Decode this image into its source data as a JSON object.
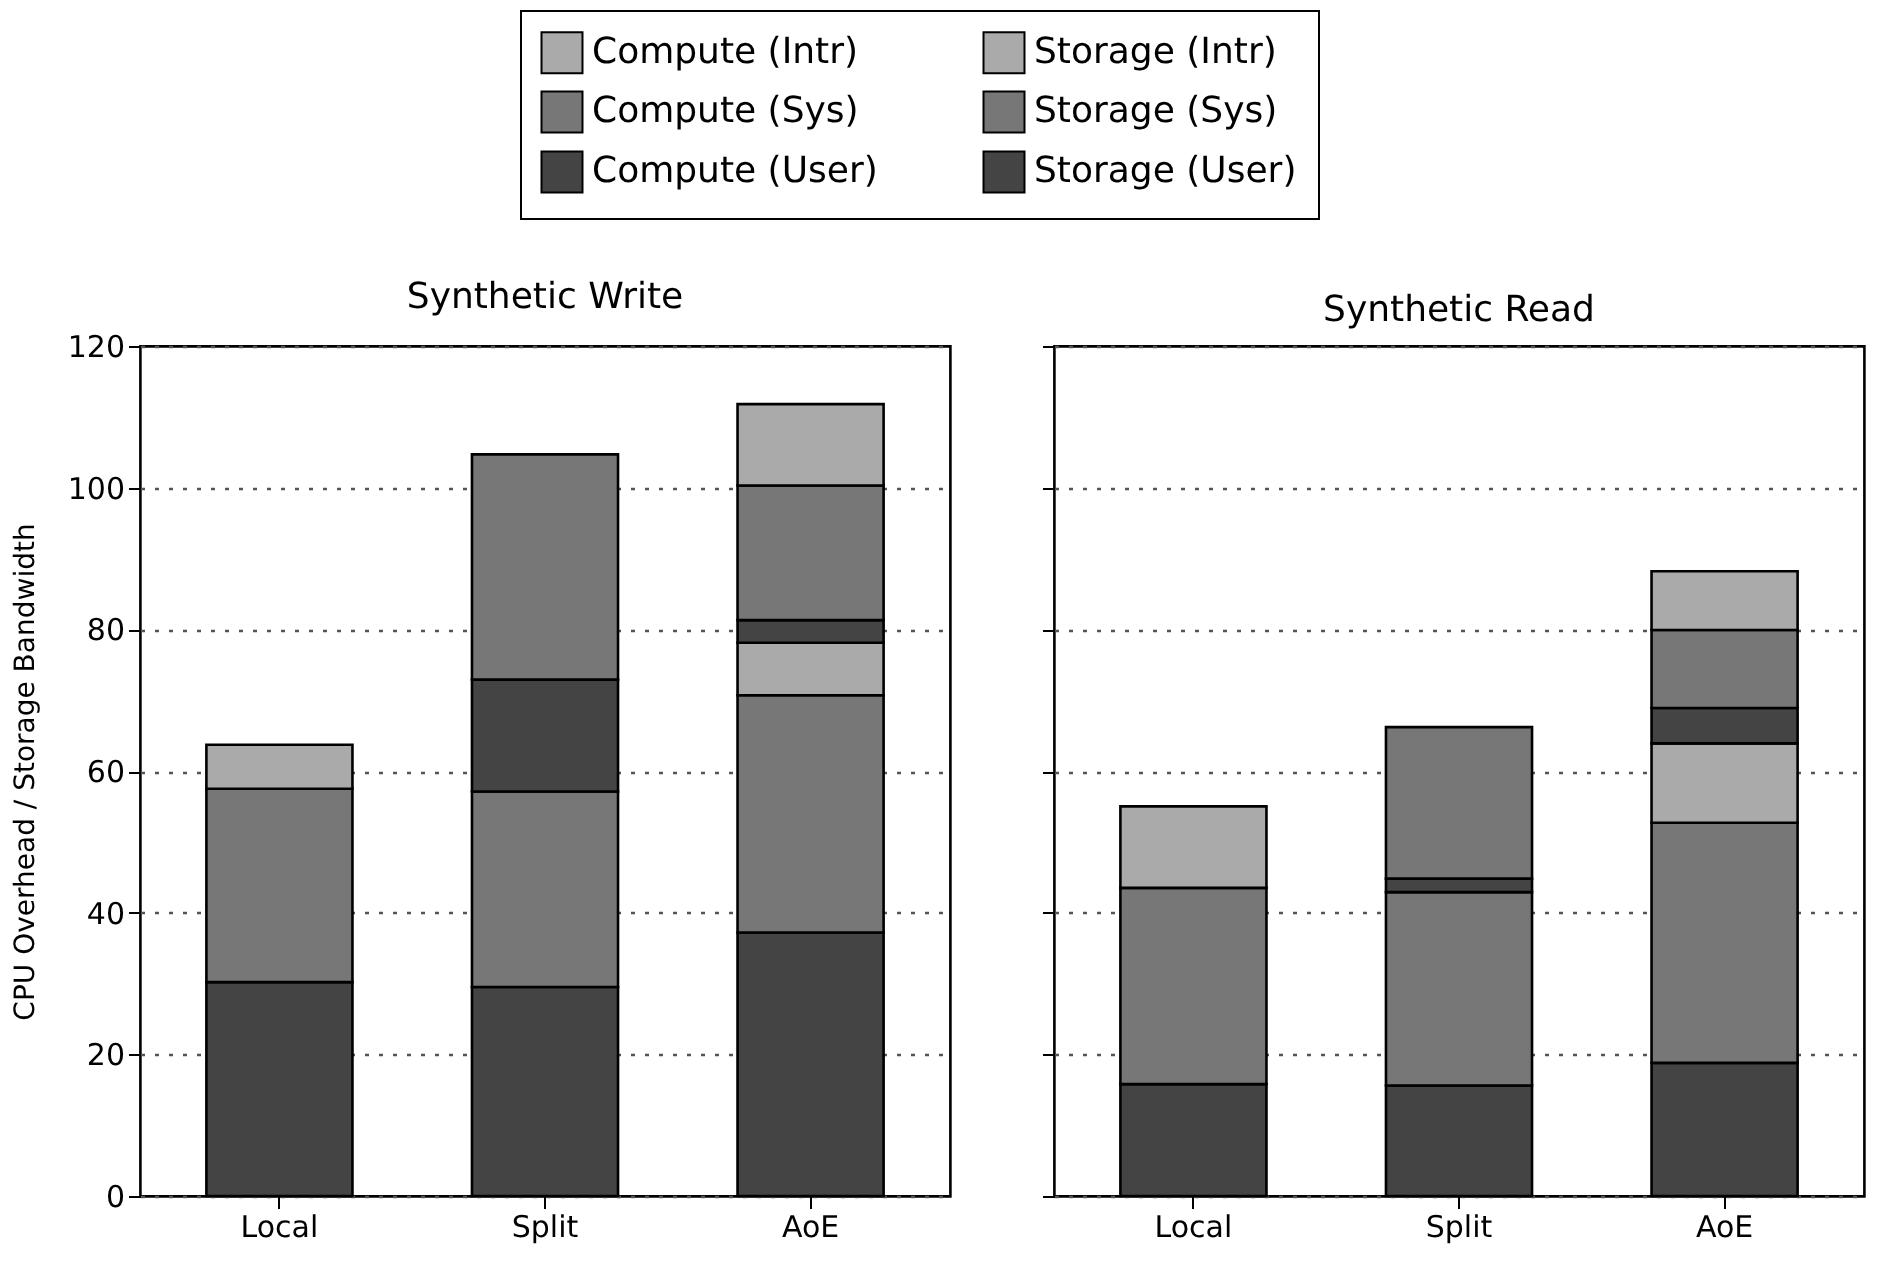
{
  "chart_data": [
    {
      "type": "bar",
      "title": "Synthetic Write",
      "ylabel": "CPU Overhead / Storage Bandwidth",
      "categories": [
        "Local",
        "Split",
        "AoE"
      ],
      "stacked": true,
      "ylim": [
        0,
        120
      ],
      "yticks": [
        0,
        20,
        40,
        60,
        80,
        100,
        120
      ],
      "grid": "y",
      "legend": "top",
      "series": [
        {
          "name": "Compute (User)",
          "color": "#444444",
          "values": [
            30.2,
            29.5,
            37.2
          ]
        },
        {
          "name": "Compute (Sys)",
          "color": "#777777",
          "values": [
            27.3,
            27.6,
            33.5
          ]
        },
        {
          "name": "Compute (Intr)",
          "color": "#aaaaaa",
          "values": [
            6.2,
            null,
            7.4
          ]
        },
        {
          "name": "Storage (User)",
          "color": "#444444",
          "values": [
            null,
            15.8,
            3.2
          ]
        },
        {
          "name": "Storage (Sys)",
          "color": "#777777",
          "values": [
            null,
            31.8,
            19.0
          ]
        },
        {
          "name": "Storage (Intr)",
          "color": "#aaaaaa",
          "values": [
            null,
            null,
            11.5
          ]
        }
      ]
    },
    {
      "type": "bar",
      "title": "Synthetic Read",
      "categories": [
        "Local",
        "Split",
        "AoE"
      ],
      "stacked": true,
      "ylim": [
        0,
        120
      ],
      "yticks": [
        0,
        20,
        40,
        60,
        80,
        100,
        120
      ],
      "grid": "y",
      "tick_labels": "x",
      "series": [
        {
          "name": "Compute (User)",
          "color": "#444444",
          "values": [
            15.8,
            15.6,
            18.8
          ]
        },
        {
          "name": "Compute (Sys)",
          "color": "#777777",
          "values": [
            27.7,
            27.3,
            33.9
          ]
        },
        {
          "name": "Compute (Intr)",
          "color": "#aaaaaa",
          "values": [
            11.5,
            null,
            11.2
          ]
        },
        {
          "name": "Storage (User)",
          "color": "#444444",
          "values": [
            null,
            1.9,
            5.0
          ]
        },
        {
          "name": "Storage (Sys)",
          "color": "#777777",
          "values": [
            null,
            21.4,
            11.0
          ]
        },
        {
          "name": "Storage (Intr)",
          "color": "#aaaaaa",
          "values": [
            null,
            null,
            8.3
          ]
        }
      ]
    }
  ]
}
